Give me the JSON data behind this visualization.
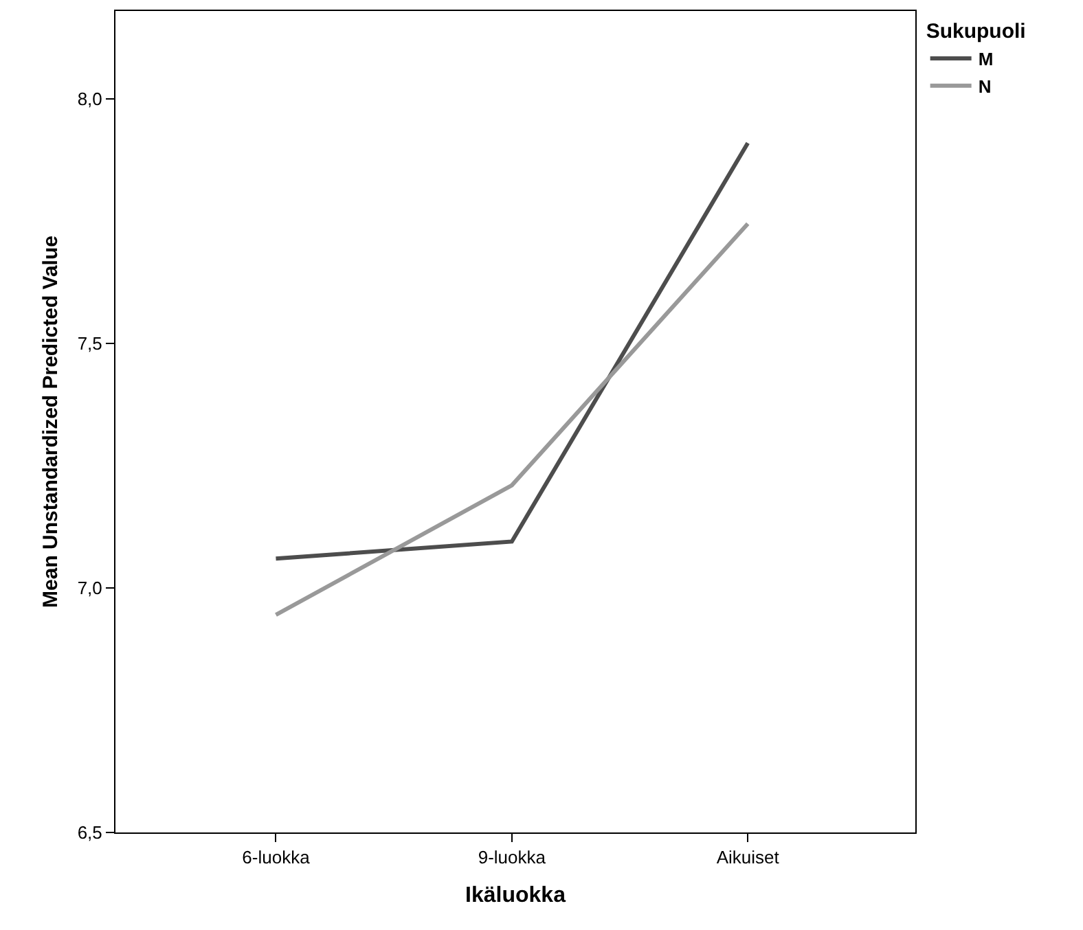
{
  "chart_data": {
    "type": "line",
    "xlabel": "Ikäluokka",
    "ylabel": "Mean Unstandardized Predicted Value",
    "legend_title": "Sukupuoli",
    "legend": "top right",
    "categories": [
      "6-luokka",
      "9-luokka",
      "Aikuiset"
    ],
    "series": [
      {
        "name": "M",
        "color": "#4d4d4d",
        "values": [
          7.06,
          7.095,
          7.91
        ]
      },
      {
        "name": "N",
        "color": "#999999",
        "values": [
          6.945,
          7.21,
          7.745
        ]
      }
    ],
    "ylim": [
      6.5,
      8.18
    ],
    "yticks": [
      {
        "value": 6.5,
        "label": "6,5"
      },
      {
        "value": 7,
        "label": "7,0"
      },
      {
        "value": 7.5,
        "label": "7,5"
      },
      {
        "value": 8,
        "label": "8,0"
      }
    ],
    "grid": false,
    "marker": "none",
    "line_style": "solid"
  }
}
